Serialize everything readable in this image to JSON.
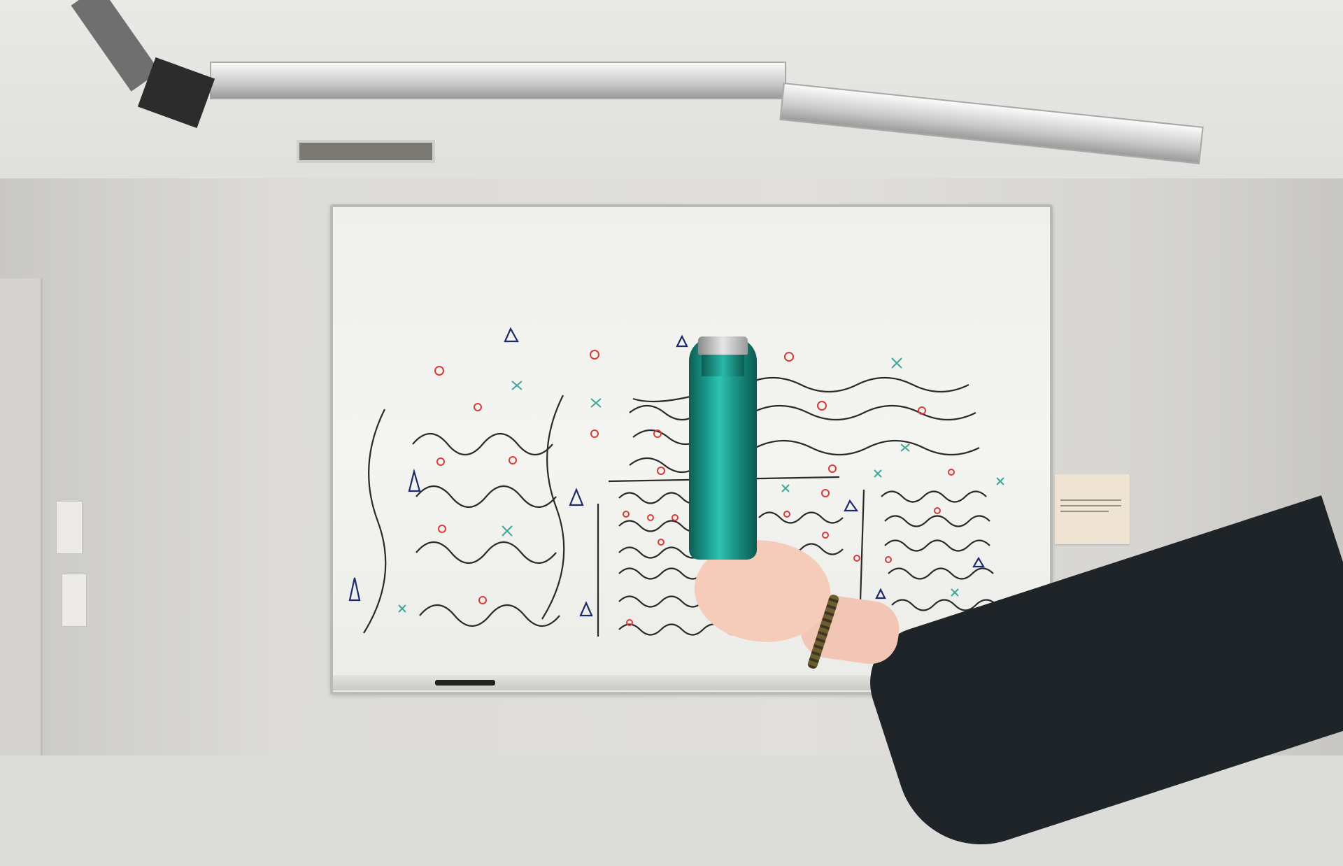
{
  "scene": {
    "description_objects": [
      "ceiling",
      "wall",
      "whiteboard",
      "bottle",
      "hand",
      "arm",
      "projector",
      "light-fixture",
      "vent",
      "door",
      "light-switch",
      "sticky-note"
    ],
    "colors": {
      "bottle": "#1a9a8c",
      "sleeve": "#1f2428",
      "skin": "#f5cbba",
      "whiteboard": "#f1f1ee",
      "marker_red": "#d83a3a",
      "marker_black": "#2a2a2a",
      "marker_teal": "#3aa89a",
      "marker_navy": "#1b2a6b"
    }
  }
}
